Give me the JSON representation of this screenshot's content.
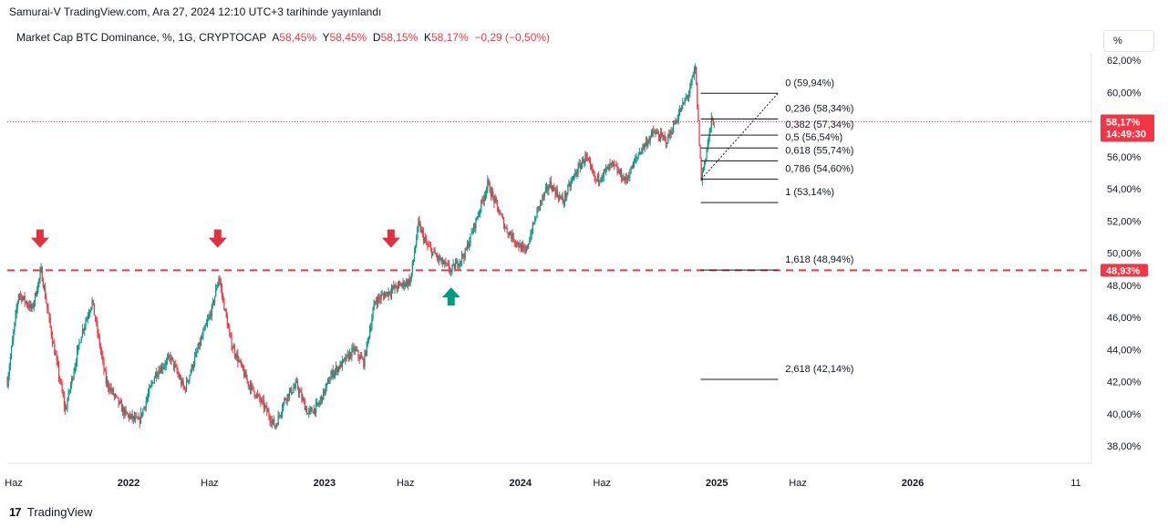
{
  "header": {
    "published": "Samurai-V TradingView.com, Ara 27, 2024 12:10 UTC+3 tarihinde yayınlandı",
    "symbol": "Market Cap BTC Dominance, %, 1G, CRYPTOCAP",
    "open_label": "A",
    "open": "58,45%",
    "high_label": "Y",
    "high": "58,45%",
    "low_label": "D",
    "low": "58,15%",
    "close_label": "K",
    "close": "58,17%",
    "change": "−0,29 (−0,50%)"
  },
  "scale_button": "%",
  "brand": {
    "logo": "17",
    "name": "TradingView"
  },
  "colors": {
    "up": "#089981",
    "down": "#f23645",
    "level": "#f23645",
    "fib": "#131722"
  },
  "chart_data": {
    "type": "candlestick",
    "y_axis": {
      "min": 38,
      "max": 62,
      "ticks": [
        "62,00%",
        "60,00%",
        "58,00%",
        "56,00%",
        "54,00%",
        "52,00%",
        "50,00%",
        "48,00%",
        "46,00%",
        "44,00%",
        "42,00%",
        "40,00%",
        "38,00%"
      ]
    },
    "x_axis": {
      "range": [
        "2021-05-20",
        "2026-11-30"
      ],
      "ticks": [
        {
          "label": "Haz",
          "date": "2021-06-01",
          "bold": false
        },
        {
          "label": "2022",
          "date": "2022-01-01",
          "bold": true
        },
        {
          "label": "Haz",
          "date": "2022-06-01",
          "bold": false
        },
        {
          "label": "2023",
          "date": "2023-01-01",
          "bold": true
        },
        {
          "label": "Haz",
          "date": "2023-06-01",
          "bold": false
        },
        {
          "label": "2024",
          "date": "2024-01-01",
          "bold": true
        },
        {
          "label": "Haz",
          "date": "2024-06-01",
          "bold": false
        },
        {
          "label": "2025",
          "date": "2025-01-01",
          "bold": true
        },
        {
          "label": "Haz",
          "date": "2025-06-01",
          "bold": false
        },
        {
          "label": "2026",
          "date": "2026-01-01",
          "bold": true
        },
        {
          "label": "11",
          "date": "2026-11-01",
          "bold": false
        }
      ]
    },
    "price_path": [
      [
        "2021-05-20",
        42.0
      ],
      [
        "2021-06-10",
        47.5
      ],
      [
        "2021-07-05",
        46.5
      ],
      [
        "2021-07-22",
        48.9
      ],
      [
        "2021-08-10",
        45.0
      ],
      [
        "2021-09-05",
        40.2
      ],
      [
        "2021-10-05",
        45.0
      ],
      [
        "2021-10-25",
        47.0
      ],
      [
        "2021-11-20",
        42.0
      ],
      [
        "2021-12-25",
        40.0
      ],
      [
        "2022-01-20",
        39.5
      ],
      [
        "2022-02-20",
        42.5
      ],
      [
        "2022-03-20",
        43.5
      ],
      [
        "2022-04-15",
        41.5
      ],
      [
        "2022-05-10",
        44.0
      ],
      [
        "2022-06-05",
        46.5
      ],
      [
        "2022-06-18",
        48.5
      ],
      [
        "2022-07-10",
        44.5
      ],
      [
        "2022-08-10",
        42.0
      ],
      [
        "2022-09-10",
        40.5
      ],
      [
        "2022-10-01",
        39.2
      ],
      [
        "2022-10-20",
        41.0
      ],
      [
        "2022-11-10",
        41.8
      ],
      [
        "2022-12-01",
        40.0
      ],
      [
        "2022-12-20",
        40.5
      ],
      [
        "2023-01-15",
        42.5
      ],
      [
        "2023-02-05",
        43.2
      ],
      [
        "2023-02-25",
        44.0
      ],
      [
        "2023-03-15",
        43.2
      ],
      [
        "2023-04-05",
        47.0
      ],
      [
        "2023-05-10",
        47.8
      ],
      [
        "2023-06-10",
        48.3
      ],
      [
        "2023-06-25",
        51.8
      ],
      [
        "2023-07-10",
        50.5
      ],
      [
        "2023-08-05",
        49.5
      ],
      [
        "2023-08-25",
        48.9
      ],
      [
        "2023-09-20",
        50.0
      ],
      [
        "2023-10-10",
        52.0
      ],
      [
        "2023-11-01",
        54.3
      ],
      [
        "2023-12-05",
        51.5
      ],
      [
        "2024-01-10",
        50.0
      ],
      [
        "2024-02-05",
        53.0
      ],
      [
        "2024-02-25",
        54.3
      ],
      [
        "2024-03-20",
        53.2
      ],
      [
        "2024-04-10",
        54.8
      ],
      [
        "2024-05-01",
        56.0
      ],
      [
        "2024-05-20",
        54.5
      ],
      [
        "2024-06-20",
        55.5
      ],
      [
        "2024-07-15",
        54.5
      ],
      [
        "2024-08-10",
        56.3
      ],
      [
        "2024-09-05",
        57.5
      ],
      [
        "2024-09-30",
        57.0
      ],
      [
        "2024-10-20",
        58.5
      ],
      [
        "2024-11-10",
        60.0
      ],
      [
        "2024-11-22",
        61.5
      ],
      [
        "2024-12-03",
        54.6
      ],
      [
        "2024-12-15",
        56.8
      ],
      [
        "2024-12-22",
        58.2
      ],
      [
        "2024-12-27",
        58.17
      ]
    ],
    "support_line": {
      "value": 48.93,
      "label": "48,93%"
    },
    "last_price": {
      "value": 58.17,
      "label": "58,17%",
      "countdown": "14:49:30"
    },
    "fibonacci": {
      "start_date": "2024-12-02",
      "end_date": "2025-04-25",
      "levels": [
        {
          "value": 59.94,
          "label": "0 (59,94%)"
        },
        {
          "value": 58.34,
          "label": "0,236 (58,34%)"
        },
        {
          "value": 57.34,
          "label": "0,382 (57,34%)"
        },
        {
          "value": 56.54,
          "label": "0,5 (56,54%)"
        },
        {
          "value": 55.74,
          "label": "0,618 (55,74%)"
        },
        {
          "value": 54.6,
          "label": "0,786 (54,60%)"
        },
        {
          "value": 53.14,
          "label": "1 (53,14%)"
        },
        {
          "value": 48.94,
          "label": "1,618 (48,94%)"
        },
        {
          "value": 42.14,
          "label": "2,618 (42,14%)"
        }
      ],
      "trend": {
        "from": [
          "2024-12-03",
          54.6
        ],
        "to": [
          "2025-04-25",
          59.94
        ]
      }
    },
    "markers": [
      {
        "type": "down-arrow",
        "date": "2021-07-20",
        "value": 50.9,
        "color": "#e03140"
      },
      {
        "type": "down-arrow",
        "date": "2022-06-16",
        "value": 50.9,
        "color": "#e03140"
      },
      {
        "type": "down-arrow",
        "date": "2023-05-05",
        "value": 50.9,
        "color": "#e03140"
      },
      {
        "type": "up-arrow",
        "date": "2023-08-25",
        "value": 47.3,
        "color": "#089981"
      }
    ]
  }
}
